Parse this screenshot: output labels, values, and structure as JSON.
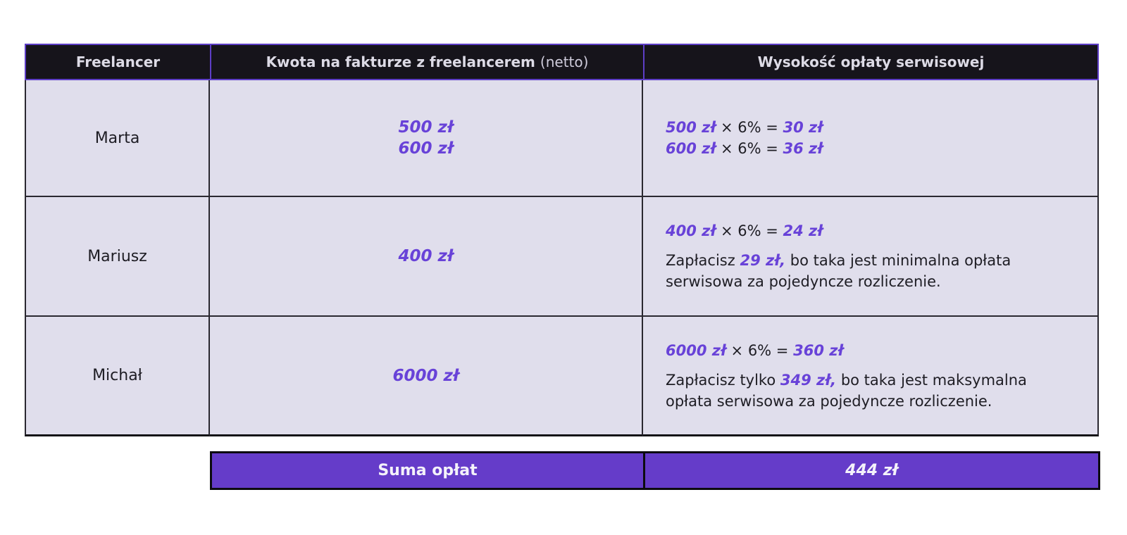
{
  "header": {
    "col1": "Freelancer",
    "col2_bold": "Kwota na fakturze z freelancerem",
    "col2_light": "(netto)",
    "col3": "Wysokość opłaty serwisowej"
  },
  "rows": {
    "marta": {
      "name": "Marta",
      "invoice_line1": "500 zł",
      "invoice_line2": "600 zł",
      "eq1": {
        "lhs": "500 zł",
        "op": "× 6% =",
        "rhs": "30 zł"
      },
      "eq2": {
        "lhs": "600 zł",
        "op": "× 6% =",
        "rhs": "36 zł"
      }
    },
    "mariusz": {
      "name": "Mariusz",
      "invoice": "400 zł",
      "eq": {
        "lhs": "400 zł",
        "op": "× 6% =",
        "rhs": "24 zł"
      },
      "note_prefix": "Zapłacisz",
      "note_amount": "29 zł,",
      "note_suffix": "bo taka jest minimalna opłata serwisowa za pojedyncze rozliczenie."
    },
    "michal": {
      "name": "Michał",
      "invoice": "6000 zł",
      "eq": {
        "lhs": "6000 zł",
        "op": "× 6% =",
        "rhs": "360 zł"
      },
      "note_prefix": "Zapłacisz tylko",
      "note_amount": "349 zł,",
      "note_suffix": "bo taka jest maksymalna opłata serwisowa za pojedyncze rozliczenie."
    }
  },
  "footer": {
    "label": "Suma opłat",
    "total": "444 zł"
  },
  "colors": {
    "accent_purple": "#6842d8",
    "footer_purple": "#653cc9",
    "header_bg": "#16141b",
    "header_border": "#5d3ec6",
    "cell_bg": "#e0deec",
    "body_border": "#2a2830"
  }
}
